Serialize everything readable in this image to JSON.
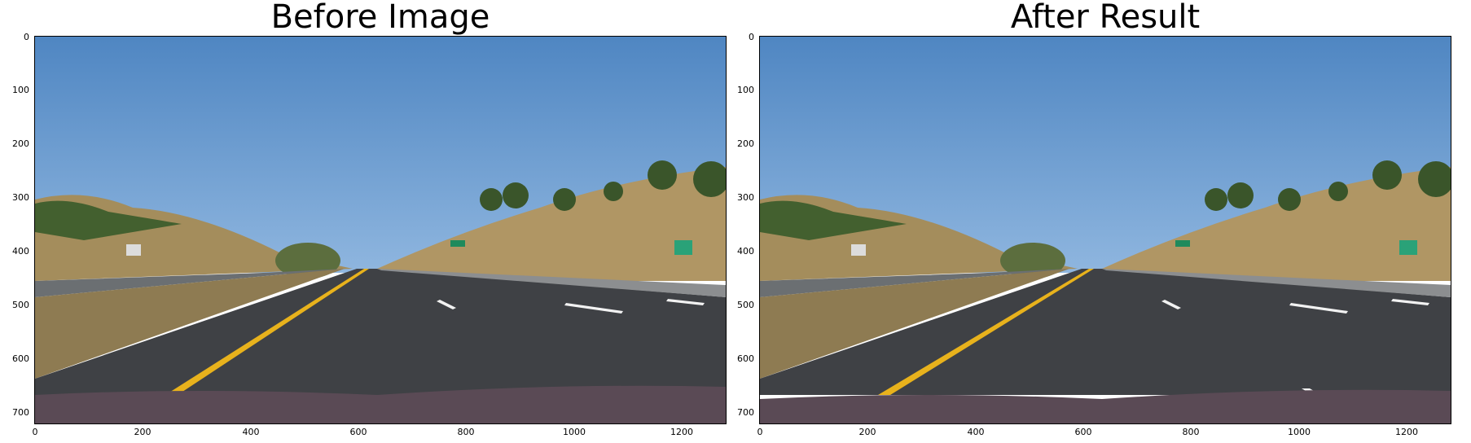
{
  "panels": [
    {
      "title": "Before Image",
      "y_ticks": [
        "0",
        "100",
        "200",
        "300",
        "400",
        "500",
        "600",
        "700"
      ],
      "x_ticks": [
        "0",
        "200",
        "400",
        "600",
        "800",
        "1000",
        "1200"
      ]
    },
    {
      "title": "After Result",
      "y_ticks": [
        "0",
        "100",
        "200",
        "300",
        "400",
        "500",
        "600",
        "700"
      ],
      "x_ticks": [
        "0",
        "200",
        "400",
        "600",
        "800",
        "1000",
        "1200"
      ]
    }
  ],
  "sign_text": "",
  "colors": {
    "sky": "#5b8fc6",
    "road": "#3f4145",
    "lane_yellow": "#e8b21c",
    "lane_white": "#f2f2f2",
    "hill": "#a58c5a",
    "trees": "#3c5a2c"
  }
}
